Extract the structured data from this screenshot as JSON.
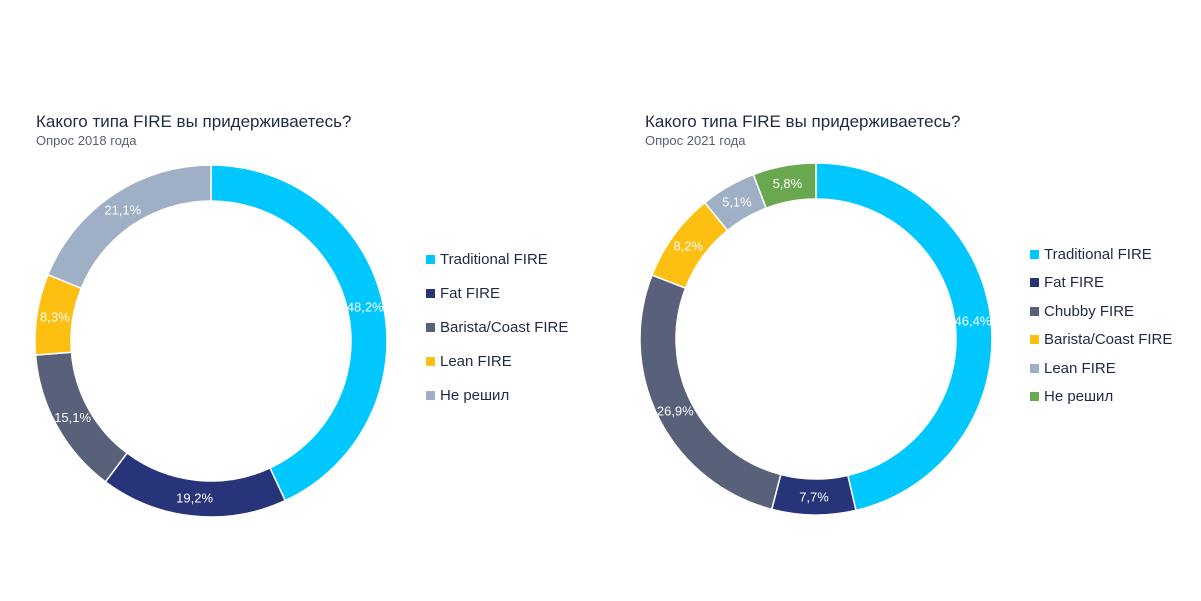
{
  "chart_data": [
    {
      "type": "pie",
      "title": "Какого типа FIRE вы придерживаетесь?",
      "subtitle": "Опрос 2018 года",
      "categories": [
        "Traditional FIRE",
        "Fat FIRE",
        "Barista/Coast FIRE",
        "Lean FIRE",
        "Не решил"
      ],
      "values": [
        48.2,
        19.2,
        15.1,
        8.3,
        21.1
      ],
      "labels": [
        "48,2%",
        "19,2%",
        "15,1%",
        "8,3%",
        "21,1%"
      ],
      "colors": [
        "#00c8ff",
        "#28347a",
        "#58607a",
        "#fdbf12",
        "#9fafc6"
      ],
      "legend": "right"
    },
    {
      "type": "pie",
      "title": "Какого типа FIRE вы придерживаетесь?",
      "subtitle": "Опрос 2021 года",
      "categories": [
        "Traditional FIRE",
        "Fat FIRE",
        "Chubby FIRE",
        "Barista/Coast FIRE",
        "Lean FIRE",
        "Не решил"
      ],
      "values": [
        46.4,
        7.7,
        26.9,
        8.2,
        5.1,
        5.8
      ],
      "labels": [
        "46,4%",
        "7,7%",
        "26,9%",
        "8,2%",
        "5,1%",
        "5,8%"
      ],
      "colors": [
        "#00c8ff",
        "#28347a",
        "#58607a",
        "#fdbf12",
        "#9fafc6",
        "#6aa84f"
      ],
      "legend": "right"
    }
  ]
}
